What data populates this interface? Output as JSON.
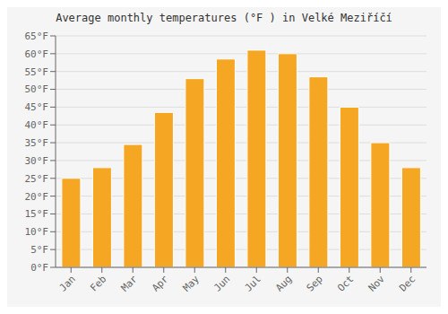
{
  "chart_data": {
    "type": "bar",
    "title": "Average monthly temperatures (°F ) in Velké Meziříčí",
    "categories": [
      "Jan",
      "Feb",
      "Mar",
      "Apr",
      "May",
      "Jun",
      "Jul",
      "Aug",
      "Sep",
      "Oct",
      "Nov",
      "Dec"
    ],
    "values": [
      25,
      28,
      34.5,
      43.5,
      53,
      58.5,
      61,
      60,
      53.5,
      45,
      35,
      28
    ],
    "color": "#F5A623",
    "ylim": [
      0,
      65
    ],
    "yticks": [
      {
        "value": 0,
        "label": "0°F"
      },
      {
        "value": 5,
        "label": "5°F"
      },
      {
        "value": 10,
        "label": "10°F"
      },
      {
        "value": 15,
        "label": "15°F"
      },
      {
        "value": 20,
        "label": "20°F"
      },
      {
        "value": 25,
        "label": "25°F"
      },
      {
        "value": 30,
        "label": "30°F"
      },
      {
        "value": 35,
        "label": "35°F"
      },
      {
        "value": 40,
        "label": "40°F"
      },
      {
        "value": 45,
        "label": "45°F"
      },
      {
        "value": 50,
        "label": "50°F"
      },
      {
        "value": 55,
        "label": "55°F"
      },
      {
        "value": 60,
        "label": "60°F"
      },
      {
        "value": 65,
        "label": "65°F"
      }
    ],
    "grid": true
  }
}
